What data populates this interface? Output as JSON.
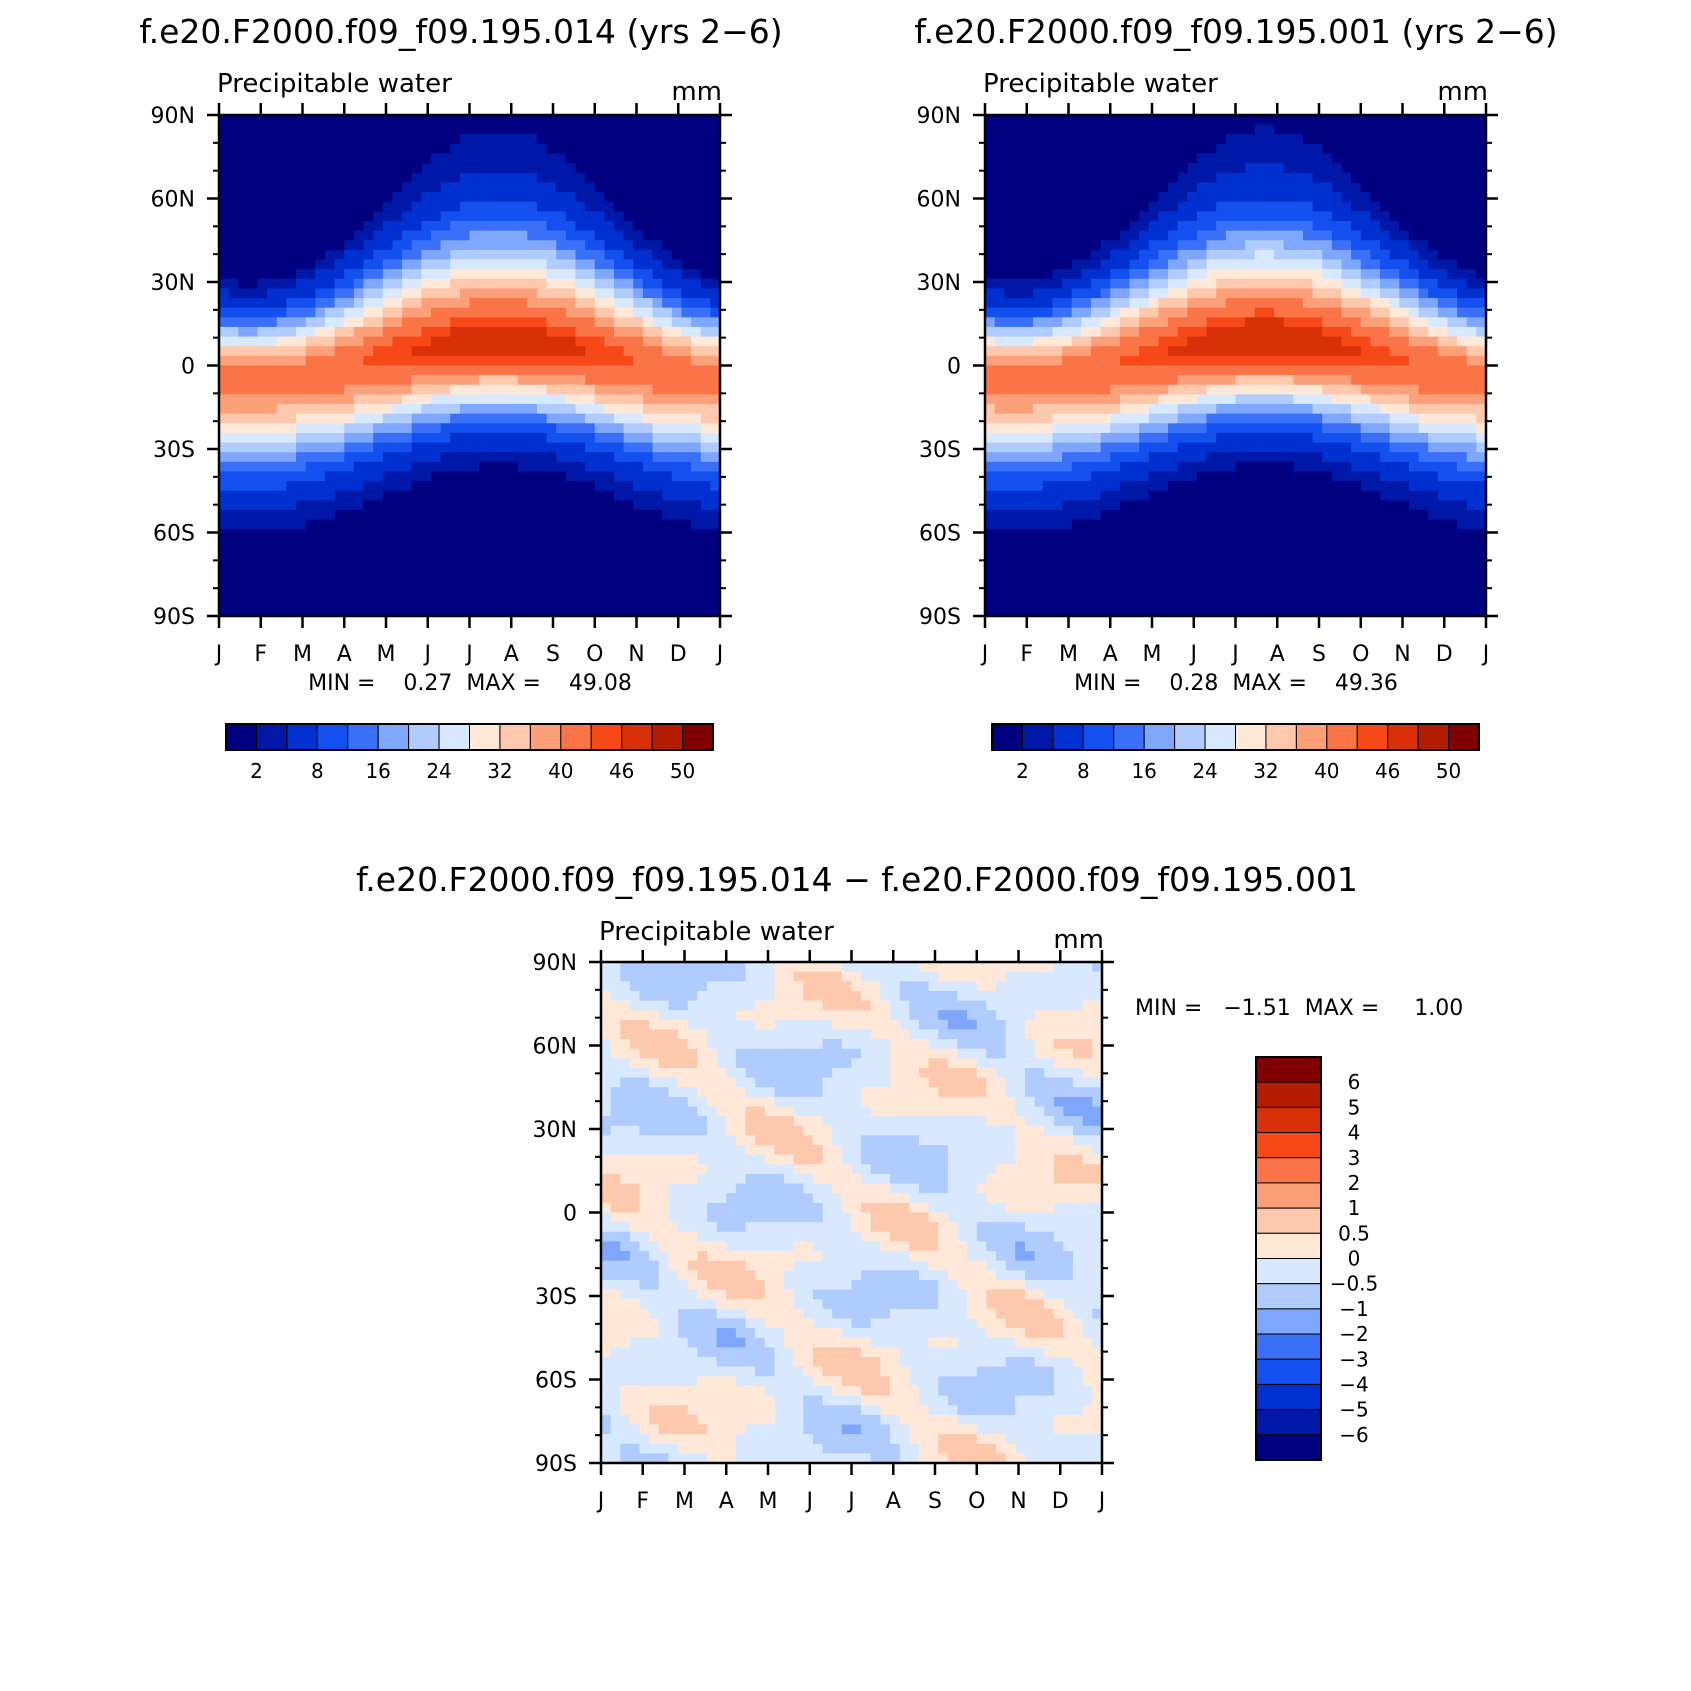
{
  "panels": [
    {
      "title": "f.e20.F2000.f09_f09.195.014 (yrs 2−6)",
      "subtitle": "Precipitable water",
      "units": "mm",
      "minmax": "MIN =    0.27  MAX =    49.08",
      "cbar_labels": [
        "2",
        "8",
        "16",
        "24",
        "32",
        "40",
        "46",
        "50"
      ]
    },
    {
      "title": "f.e20.F2000.f09_f09.195.001 (yrs 2−6)",
      "subtitle": "Precipitable water",
      "units": "mm",
      "minmax": "MIN =    0.28  MAX =    49.36",
      "cbar_labels": [
        "2",
        "8",
        "16",
        "24",
        "32",
        "40",
        "46",
        "50"
      ]
    },
    {
      "title": "f.e20.F2000.f09_f09.195.014 − f.e20.F2000.f09_f09.195.001",
      "subtitle": "Precipitable water",
      "units": "mm",
      "minmax": "MIN =   −1.51  MAX =     1.00",
      "cbar_labels": [
        "6",
        "5",
        "4",
        "3",
        "2",
        "1",
        "0.5",
        "0",
        "−0.5",
        "−1",
        "−2",
        "−3",
        "−4",
        "−5",
        "−6"
      ]
    }
  ],
  "chart_data": [
    {
      "type": "heatmap",
      "title": "f.e20.F2000.f09_f09.195.014 (yrs 2−6)",
      "subtitle": "Precipitable water",
      "units": "mm",
      "x_ticks": [
        "J",
        "F",
        "M",
        "A",
        "M",
        "J",
        "J",
        "A",
        "S",
        "O",
        "N",
        "D",
        "J"
      ],
      "y_ticks": [
        "90N",
        "60N",
        "30N",
        "0",
        "30S",
        "60S",
        "90S"
      ],
      "ylim": [
        -90,
        90
      ],
      "min": 0.27,
      "max": 49.08,
      "levels": [
        2,
        4,
        8,
        12,
        16,
        20,
        24,
        28,
        32,
        36,
        40,
        44,
        46,
        48,
        50
      ],
      "colors": [
        "#000080",
        "#0018a8",
        "#0030d0",
        "#1450f0",
        "#3a70f8",
        "#7ea6fc",
        "#b0ccfe",
        "#d8e8ff",
        "#ffe8d8",
        "#fdc8ac",
        "#fca07a",
        "#fb7448",
        "#f74818",
        "#d83008",
        "#b41c00",
        "#800000"
      ]
    },
    {
      "type": "heatmap",
      "title": "f.e20.F2000.f09_f09.195.001 (yrs 2−6)",
      "subtitle": "Precipitable water",
      "units": "mm",
      "x_ticks": [
        "J",
        "F",
        "M",
        "A",
        "M",
        "J",
        "J",
        "A",
        "S",
        "O",
        "N",
        "D",
        "J"
      ],
      "y_ticks": [
        "90N",
        "60N",
        "30N",
        "0",
        "30S",
        "60S",
        "90S"
      ],
      "ylim": [
        -90,
        90
      ],
      "min": 0.28,
      "max": 49.36,
      "levels": [
        2,
        4,
        8,
        12,
        16,
        20,
        24,
        28,
        32,
        36,
        40,
        44,
        46,
        48,
        50
      ],
      "colors": [
        "#000080",
        "#0018a8",
        "#0030d0",
        "#1450f0",
        "#3a70f8",
        "#7ea6fc",
        "#b0ccfe",
        "#d8e8ff",
        "#ffe8d8",
        "#fdc8ac",
        "#fca07a",
        "#fb7448",
        "#f74818",
        "#d83008",
        "#b41c00",
        "#800000"
      ]
    },
    {
      "type": "heatmap",
      "title": "f.e20.F2000.f09_f09.195.014 − f.e20.F2000.f09_f09.195.001",
      "subtitle": "Precipitable water",
      "units": "mm",
      "x_ticks": [
        "J",
        "F",
        "M",
        "A",
        "M",
        "J",
        "J",
        "A",
        "S",
        "O",
        "N",
        "D",
        "J"
      ],
      "y_ticks": [
        "90N",
        "60N",
        "30N",
        "0",
        "30S",
        "60S",
        "90S"
      ],
      "ylim": [
        -90,
        90
      ],
      "min": -1.51,
      "max": 1.0,
      "levels": [
        -6,
        -5,
        -4,
        -3,
        -2,
        -1,
        -0.5,
        0,
        0.5,
        1,
        2,
        3,
        4,
        5,
        6
      ],
      "colors": [
        "#000080",
        "#0018a8",
        "#0030d0",
        "#1450f0",
        "#3a70f8",
        "#7ea6fc",
        "#b0ccfe",
        "#d8e8ff",
        "#ffe8d8",
        "#fdc8ac",
        "#fca07a",
        "#fb7448",
        "#f74818",
        "#d83008",
        "#b41c00",
        "#800000"
      ]
    }
  ]
}
